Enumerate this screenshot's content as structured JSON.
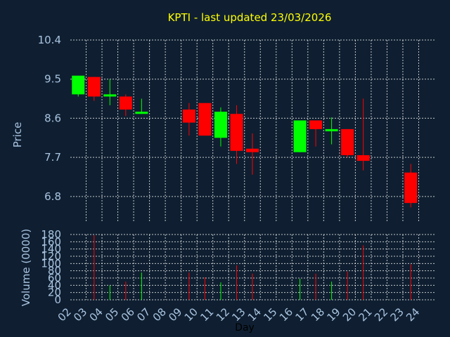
{
  "chart_data": {
    "type": "candlestick",
    "title": "KPTI - last updated 23/03/2026",
    "xlabel": "Day",
    "x_ticks": [
      "02",
      "03",
      "04",
      "05",
      "06",
      "07",
      "08",
      "09",
      "10",
      "11",
      "12",
      "13",
      "14",
      "15",
      "16",
      "17",
      "18",
      "19",
      "20",
      "21",
      "22",
      "23",
      "24"
    ],
    "colors": {
      "up": "#00ff00",
      "down": "#ff0000",
      "background": "#0f1f31",
      "grid": "#ffffff",
      "axis_text": "#a9c4e0",
      "title": "#ffff00"
    },
    "price": {
      "ylabel": "Price",
      "ylim": [
        6.2,
        10.4
      ],
      "y_ticks": [
        10.4,
        9.5,
        8.6,
        7.7,
        6.8
      ],
      "candles": [
        {
          "day": "02",
          "open": 9.15,
          "high": 9.58,
          "low": 9.1,
          "close": 9.58
        },
        {
          "day": "03",
          "open": 9.55,
          "high": 9.55,
          "low": 9.0,
          "close": 9.1
        },
        {
          "day": "04",
          "open": 9.1,
          "high": 9.5,
          "low": 8.9,
          "close": 9.15
        },
        {
          "day": "05",
          "open": 9.1,
          "high": 9.15,
          "low": 8.65,
          "close": 8.8
        },
        {
          "day": "06",
          "open": 8.7,
          "high": 9.05,
          "low": 8.7,
          "close": 8.75
        },
        {
          "day": "09",
          "open": 8.8,
          "high": 8.95,
          "low": 8.2,
          "close": 8.5
        },
        {
          "day": "10",
          "open": 8.95,
          "high": 8.95,
          "low": 8.2,
          "close": 8.2
        },
        {
          "day": "11",
          "open": 8.15,
          "high": 8.85,
          "low": 7.95,
          "close": 8.75
        },
        {
          "day": "12",
          "open": 8.7,
          "high": 8.9,
          "low": 7.55,
          "close": 7.85
        },
        {
          "day": "13",
          "open": 7.9,
          "high": 8.25,
          "low": 7.3,
          "close": 7.82
        },
        {
          "day": "16",
          "open": 7.82,
          "high": 8.55,
          "low": 7.82,
          "close": 8.55
        },
        {
          "day": "17",
          "open": 8.55,
          "high": 8.55,
          "low": 7.95,
          "close": 8.35
        },
        {
          "day": "18",
          "open": 8.3,
          "high": 8.62,
          "low": 8.0,
          "close": 8.35
        },
        {
          "day": "19",
          "open": 8.35,
          "high": 8.35,
          "low": 7.7,
          "close": 7.75
        },
        {
          "day": "20",
          "open": 7.75,
          "high": 9.05,
          "low": 7.4,
          "close": 7.62
        },
        {
          "day": "23",
          "open": 7.35,
          "high": 7.55,
          "low": 6.55,
          "close": 6.65
        }
      ]
    },
    "volume": {
      "ylabel": "Volume (0000)",
      "ylim": [
        0,
        180
      ],
      "y_ticks": [
        0,
        20,
        40,
        60,
        80,
        100,
        120,
        140,
        160,
        180
      ],
      "bars": [
        {
          "day": "03",
          "value": 178,
          "dir": "down"
        },
        {
          "day": "04",
          "value": 40,
          "dir": "up"
        },
        {
          "day": "05",
          "value": 50,
          "dir": "down"
        },
        {
          "day": "06",
          "value": 75,
          "dir": "up"
        },
        {
          "day": "09",
          "value": 75,
          "dir": "down"
        },
        {
          "day": "10",
          "value": 62,
          "dir": "down"
        },
        {
          "day": "11",
          "value": 48,
          "dir": "up"
        },
        {
          "day": "12",
          "value": 95,
          "dir": "down"
        },
        {
          "day": "13",
          "value": 72,
          "dir": "down"
        },
        {
          "day": "16",
          "value": 58,
          "dir": "up"
        },
        {
          "day": "17",
          "value": 72,
          "dir": "down"
        },
        {
          "day": "18",
          "value": 50,
          "dir": "up"
        },
        {
          "day": "19",
          "value": 78,
          "dir": "down"
        },
        {
          "day": "20",
          "value": 150,
          "dir": "down"
        },
        {
          "day": "23",
          "value": 98,
          "dir": "down"
        }
      ]
    }
  }
}
